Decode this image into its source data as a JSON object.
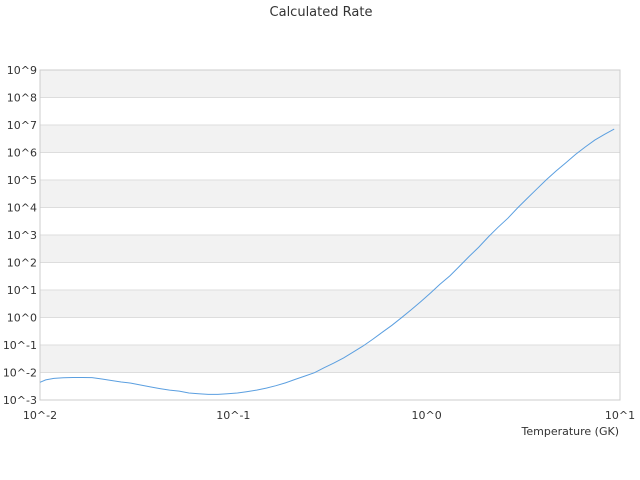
{
  "chart_data": {
    "type": "line",
    "title": "Calculated Rate",
    "xlabel": "Temperature (GK)",
    "ylabel": "",
    "x_scale": "log",
    "y_scale": "log",
    "xlim": [
      0.01,
      10
    ],
    "ylim": [
      0.001,
      1000000000
    ],
    "grid": "alternating horizontal bands",
    "legend": "none",
    "colors": {
      "line": "#5b9fe0",
      "band": "#f2f2f2",
      "gridline": "#dddddd",
      "frame": "#cccccc"
    },
    "x_ticks": [
      {
        "value": 0.01,
        "label": "10^-2"
      },
      {
        "value": 0.1,
        "label": "10^-1"
      },
      {
        "value": 1,
        "label": "10^0"
      },
      {
        "value": 10,
        "label": "10^1"
      }
    ],
    "y_ticks": [
      {
        "value": 1000000000.0,
        "label": "10^9"
      },
      {
        "value": 100000000.0,
        "label": "10^8"
      },
      {
        "value": 10000000.0,
        "label": "10^7"
      },
      {
        "value": 1000000.0,
        "label": "10^6"
      },
      {
        "value": 100000.0,
        "label": "10^5"
      },
      {
        "value": 10000.0,
        "label": "10^4"
      },
      {
        "value": 1000.0,
        "label": "10^3"
      },
      {
        "value": 100.0,
        "label": "10^2"
      },
      {
        "value": 10.0,
        "label": "10^1"
      },
      {
        "value": 1,
        "label": "10^0"
      },
      {
        "value": 0.1,
        "label": "10^-1"
      },
      {
        "value": 0.01,
        "label": "10^-2"
      },
      {
        "value": 0.001,
        "label": "10^-3"
      }
    ],
    "series": [
      {
        "x": [
          0.01,
          0.0107,
          0.0118,
          0.0132,
          0.0148,
          0.0166,
          0.0186,
          0.0209,
          0.0234,
          0.0263,
          0.0295,
          0.0331,
          0.0372,
          0.0417,
          0.0468,
          0.0525,
          0.0589,
          0.0661,
          0.0741,
          0.0832,
          0.0933,
          0.105,
          0.117,
          0.132,
          0.148,
          0.166,
          0.186,
          0.209,
          0.234,
          0.263,
          0.295,
          0.331,
          0.372,
          0.417,
          0.468,
          0.525,
          0.589,
          0.661,
          0.741,
          0.832,
          0.933,
          1.05,
          1.17,
          1.32,
          1.48,
          1.66,
          1.86,
          2.09,
          2.34,
          2.63,
          2.95,
          3.31,
          3.72,
          4.17,
          4.68,
          5.25,
          5.89,
          6.61,
          7.41,
          8.32,
          9.33
        ],
        "y": [
          0.0044,
          0.0054,
          0.0061,
          0.0064,
          0.0066,
          0.0066,
          0.0065,
          0.0058,
          0.0051,
          0.0045,
          0.0041,
          0.0035,
          0.003,
          0.0026,
          0.0023,
          0.0021,
          0.0018,
          0.0017,
          0.0016,
          0.0016,
          0.0017,
          0.0018,
          0.002,
          0.0023,
          0.0027,
          0.0033,
          0.0042,
          0.0056,
          0.0074,
          0.0098,
          0.015,
          0.022,
          0.034,
          0.055,
          0.091,
          0.16,
          0.29,
          0.52,
          0.98,
          1.9,
          3.8,
          7.9,
          16,
          33,
          74,
          166,
          363,
          871,
          1905,
          4074,
          9550,
          21380,
          47860,
          104700,
          213800,
          426600,
          851100,
          1585000,
          2818000,
          4571000,
          7079000
        ]
      }
    ]
  }
}
